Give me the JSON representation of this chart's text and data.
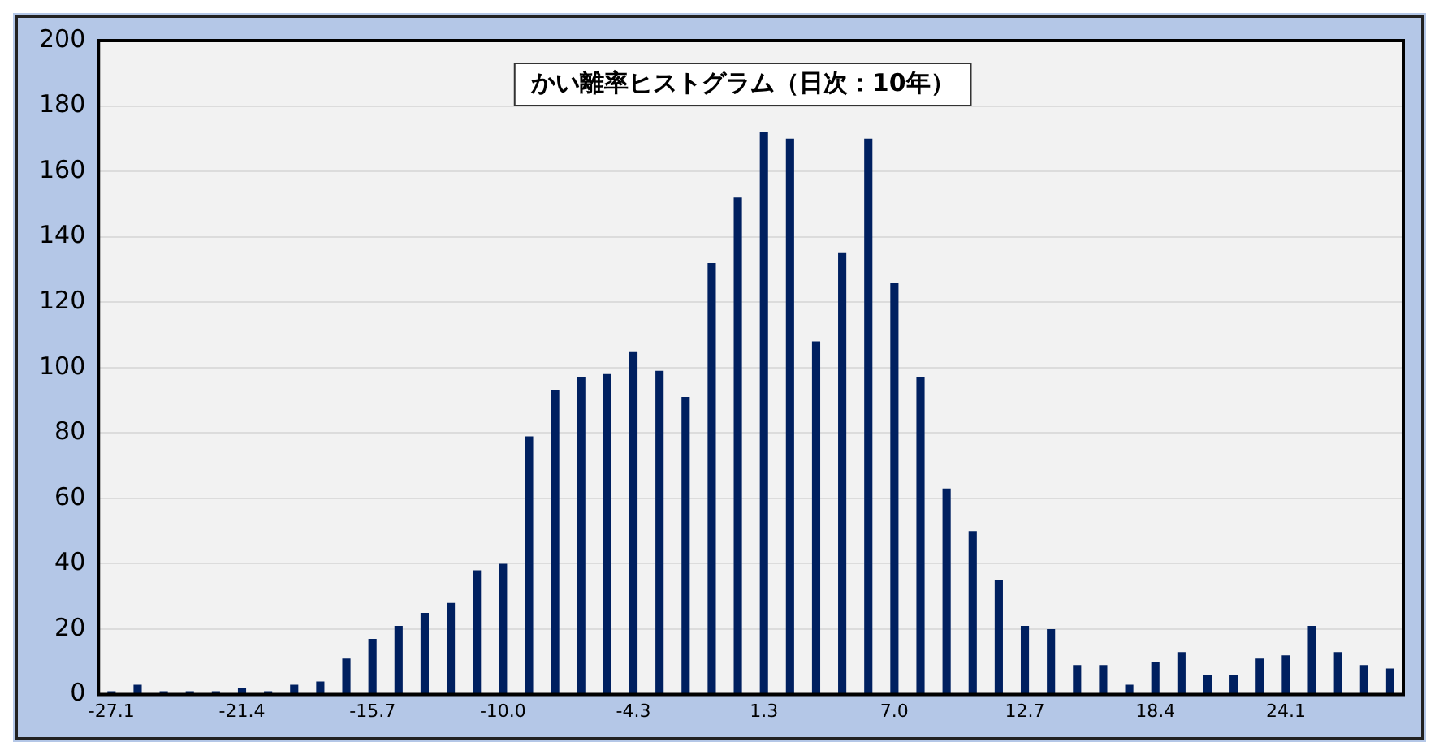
{
  "chart_data": {
    "type": "bar",
    "title": "かい離率ヒストグラム（日次：10年）",
    "categories": [
      "-27.1",
      null,
      null,
      null,
      null,
      "-21.4",
      null,
      null,
      null,
      null,
      "-15.7",
      null,
      null,
      null,
      null,
      "-10.0",
      null,
      null,
      null,
      null,
      "-4.3",
      null,
      null,
      null,
      null,
      "1.3",
      null,
      null,
      null,
      null,
      "7.0",
      null,
      null,
      null,
      null,
      "12.7",
      null,
      null,
      null,
      null,
      "18.4",
      null,
      null,
      null,
      null,
      "24.1",
      null,
      null,
      null,
      null
    ],
    "values": [
      1,
      3,
      1,
      1,
      1,
      2,
      1,
      3,
      4,
      11,
      17,
      21,
      25,
      28,
      38,
      40,
      79,
      93,
      97,
      98,
      105,
      99,
      91,
      132,
      152,
      172,
      170,
      108,
      135,
      170,
      126,
      97,
      63,
      50,
      35,
      21,
      20,
      9,
      9,
      3,
      10,
      13,
      6,
      6,
      11,
      12,
      21,
      13,
      9,
      8
    ],
    "color": "#002060",
    "ylim": [
      0,
      200
    ],
    "yticks": [
      0,
      20,
      40,
      60,
      80,
      100,
      120,
      140,
      160,
      180,
      200
    ],
    "grid": "y",
    "legend": false
  }
}
